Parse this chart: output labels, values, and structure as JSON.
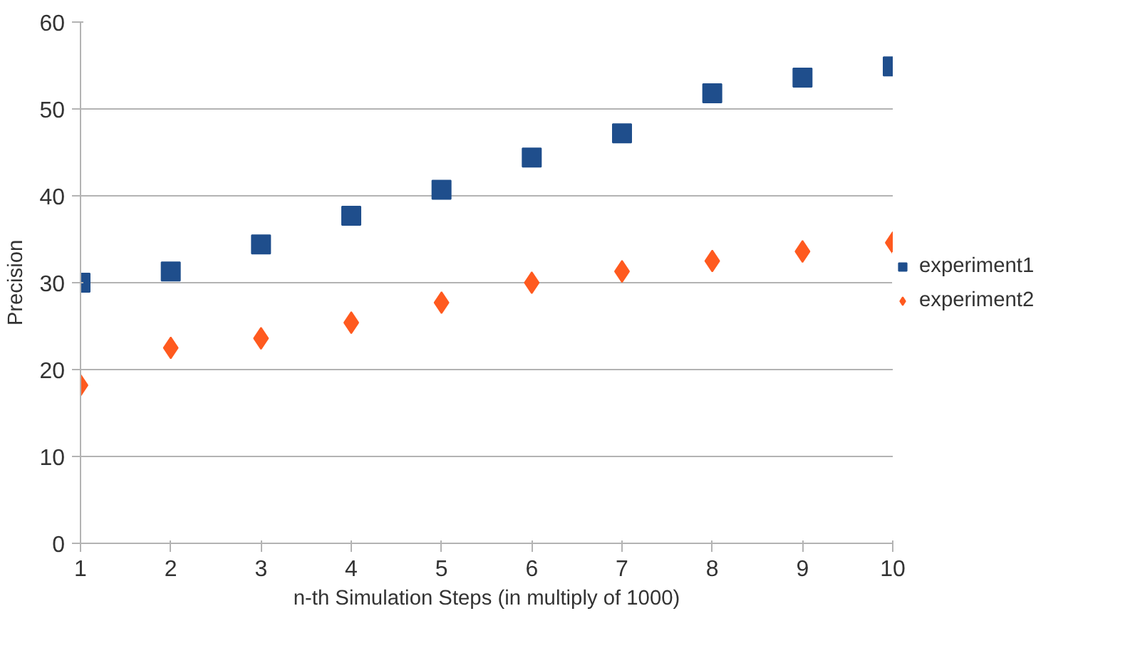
{
  "chart_data": {
    "type": "scatter",
    "xlabel": "n-th Simulation Steps (in multiply of 1000)",
    "ylabel": "Precision",
    "x": [
      1,
      2,
      3,
      4,
      5,
      6,
      7,
      8,
      9,
      10
    ],
    "series": [
      {
        "name": "experiment1",
        "color": "#1f4e8c",
        "marker": "square",
        "values": [
          30.0,
          31.3,
          34.4,
          37.7,
          40.7,
          44.4,
          47.2,
          51.8,
          53.6,
          54.9
        ]
      },
      {
        "name": "experiment2",
        "color": "#ff5a1f",
        "marker": "diamond",
        "values": [
          18.2,
          22.5,
          23.6,
          25.4,
          27.7,
          30.0,
          31.3,
          32.5,
          33.6,
          34.6
        ]
      }
    ],
    "xlim": [
      1,
      10
    ],
    "xticks": [
      1,
      2,
      3,
      4,
      5,
      6,
      7,
      8,
      9,
      10
    ],
    "ylim": [
      0,
      60
    ],
    "yticks": [
      0,
      10,
      20,
      30,
      40,
      50,
      60
    ],
    "grid": "y",
    "legend": "right"
  }
}
